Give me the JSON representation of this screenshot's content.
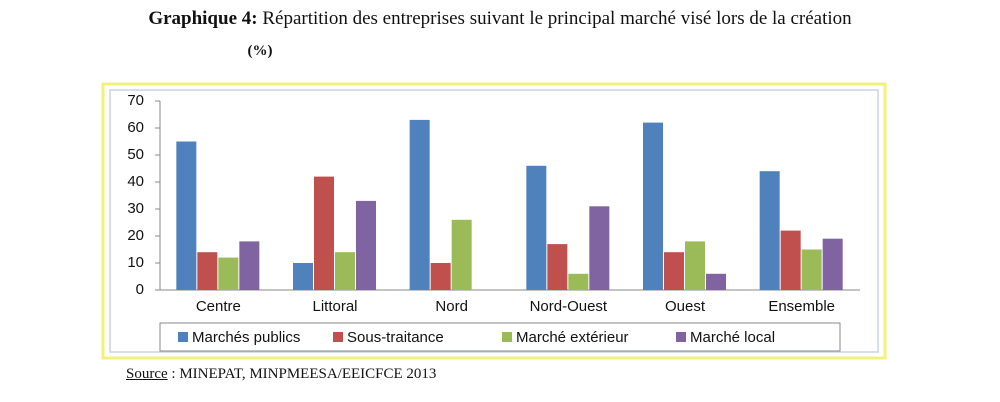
{
  "chart_data": {
    "type": "bar",
    "title_label": "Graphique 4:",
    "title": "Répartition des entreprises suivant le principal marché visé lors de la création",
    "unit": "(%)",
    "source_label": "Source",
    "source_text": ": MINEPAT, MINPMEESA/EEICFCE 2013",
    "categories": [
      "Centre",
      "Littoral",
      "Nord",
      "Nord-Ouest",
      "Ouest",
      "Ensemble"
    ],
    "series": [
      {
        "name": "Marchés publics",
        "color": "#4f81bd",
        "values": [
          55,
          10,
          63,
          46,
          62,
          44
        ]
      },
      {
        "name": "Sous-traitance",
        "color": "#c0504d",
        "values": [
          14,
          42,
          10,
          17,
          14,
          22
        ]
      },
      {
        "name": "Marché extérieur",
        "color": "#9bbb59",
        "values": [
          12,
          14,
          26,
          6,
          18,
          15
        ]
      },
      {
        "name": "Marché local",
        "color": "#8064a2",
        "values": [
          18,
          33,
          0,
          31,
          6,
          19
        ]
      }
    ],
    "ylim": [
      0,
      70
    ],
    "yticks": [
      0,
      10,
      20,
      30,
      40,
      50,
      60,
      70
    ],
    "grid": false,
    "legend": "bottom"
  }
}
